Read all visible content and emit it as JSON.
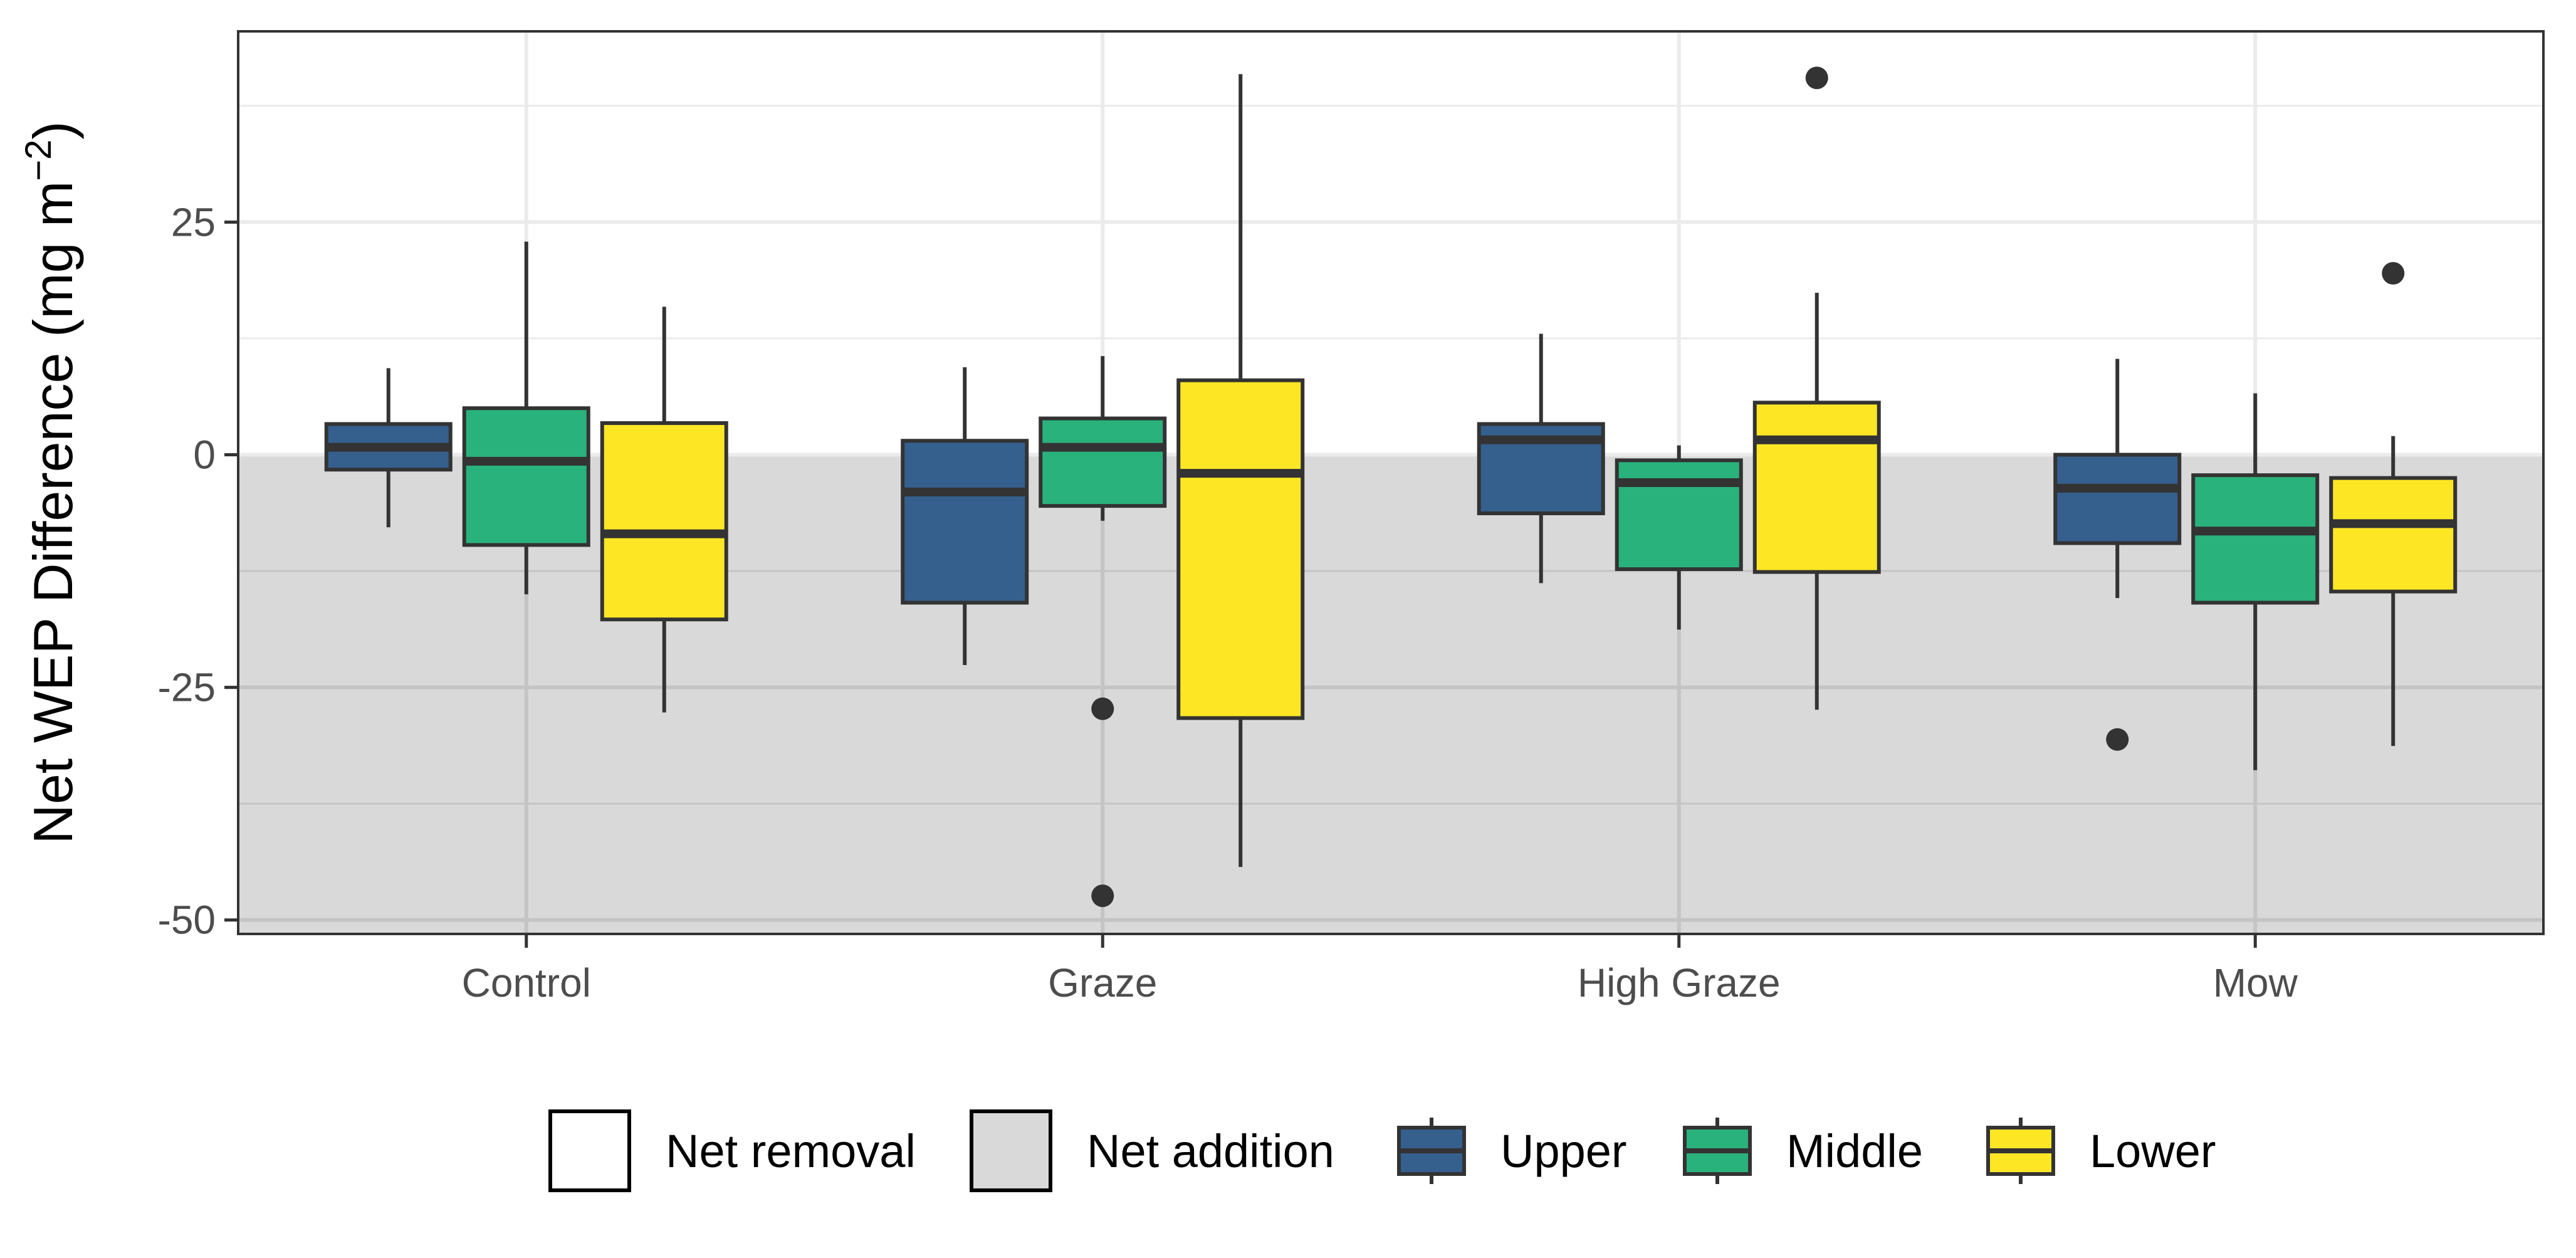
{
  "chart_data": {
    "type": "box",
    "ylabel_main": "Net WEP Difference (mg m",
    "ylabel_sup": "−2",
    "ylabel_close": ")",
    "xlabel": "",
    "ylim": [
      -51.5,
      45.5
    ],
    "yticks": [
      -50,
      -25,
      0,
      25
    ],
    "grid": true,
    "categories": [
      "Control",
      "Graze",
      "High Graze",
      "Mow"
    ],
    "shaded_region": {
      "from": -51.5,
      "to": 0,
      "color": "#d9d9d9"
    },
    "legend": {
      "position": "bottom",
      "entries": [
        {
          "label": "Net removal",
          "kind": "fill",
          "color": "#ffffff"
        },
        {
          "label": "Net addition",
          "kind": "fill",
          "color": "#d9d9d9"
        },
        {
          "label": "Upper",
          "kind": "box",
          "color": "#355f8d"
        },
        {
          "label": "Middle",
          "kind": "box",
          "color": "#2ab27c"
        },
        {
          "label": "Lower",
          "kind": "box",
          "color": "#fde725"
        }
      ]
    },
    "series": [
      {
        "name": "Upper",
        "color": "#355f8d",
        "boxes": [
          {
            "category": "Control",
            "whisker_low": -7.8,
            "q1": -1.6,
            "median": 0.8,
            "q3": 3.3,
            "whisker_high": 9.3,
            "outliers": []
          },
          {
            "category": "Graze",
            "whisker_low": -22.6,
            "q1": -15.9,
            "median": -4.0,
            "q3": 1.5,
            "whisker_high": 9.4,
            "outliers": []
          },
          {
            "category": "High Graze",
            "whisker_low": -13.8,
            "q1": -6.3,
            "median": 1.6,
            "q3": 3.3,
            "whisker_high": 13.0,
            "outliers": []
          },
          {
            "category": "Mow",
            "whisker_low": -15.4,
            "q1": -9.5,
            "median": -3.6,
            "q3": 0.0,
            "whisker_high": 10.3,
            "outliers": [
              -30.6
            ]
          }
        ]
      },
      {
        "name": "Middle",
        "color": "#2ab27c",
        "boxes": [
          {
            "category": "Control",
            "whisker_low": -15.0,
            "q1": -9.7,
            "median": -0.7,
            "q3": 5.0,
            "whisker_high": 22.9,
            "outliers": []
          },
          {
            "category": "Graze",
            "whisker_low": -7.1,
            "q1": -5.5,
            "median": 0.8,
            "q3": 3.9,
            "whisker_high": 10.6,
            "outliers": [
              -27.3,
              -47.4
            ]
          },
          {
            "category": "High Graze",
            "whisker_low": -18.8,
            "q1": -12.3,
            "median": -3.0,
            "q3": -0.6,
            "whisker_high": 1.0,
            "outliers": []
          },
          {
            "category": "Mow",
            "whisker_low": -33.9,
            "q1": -15.9,
            "median": -8.2,
            "q3": -2.2,
            "whisker_high": 6.6,
            "outliers": []
          }
        ]
      },
      {
        "name": "Lower",
        "color": "#fde725",
        "boxes": [
          {
            "category": "Control",
            "whisker_low": -27.7,
            "q1": -17.7,
            "median": -8.5,
            "q3": 3.4,
            "whisker_high": 15.9,
            "outliers": []
          },
          {
            "category": "Graze",
            "whisker_low": -44.3,
            "q1": -28.3,
            "median": -2.0,
            "q3": 8.0,
            "whisker_high": 40.9,
            "outliers": []
          },
          {
            "category": "High Graze",
            "whisker_low": -27.4,
            "q1": -12.6,
            "median": 1.6,
            "q3": 5.6,
            "whisker_high": 17.4,
            "outliers": [
              40.5
            ]
          },
          {
            "category": "Mow",
            "whisker_low": -31.3,
            "q1": -14.7,
            "median": -7.4,
            "q3": -2.5,
            "whisker_high": 2.0,
            "outliers": [
              19.5
            ]
          }
        ]
      }
    ]
  }
}
